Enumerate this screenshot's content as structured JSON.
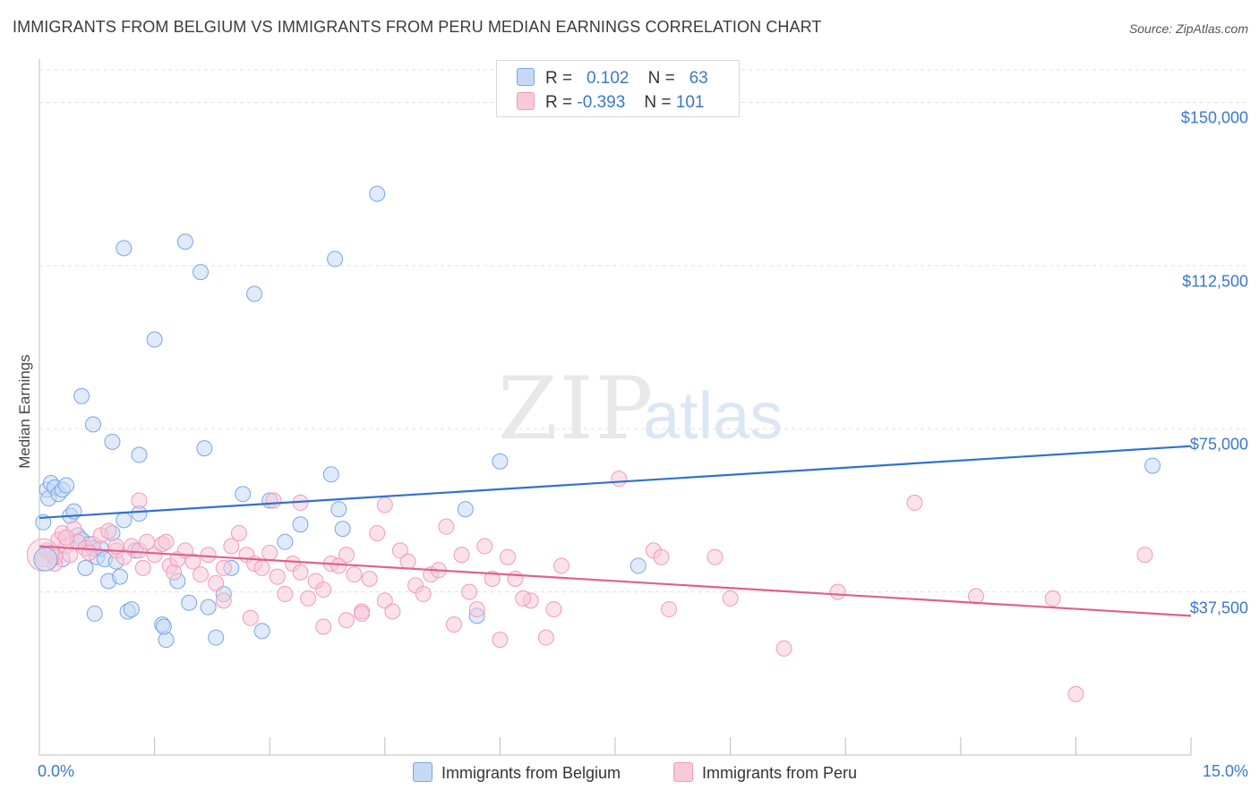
{
  "chart_data": {
    "type": "scatter",
    "title": "IMMIGRANTS FROM BELGIUM VS IMMIGRANTS FROM PERU MEDIAN EARNINGS CORRELATION CHART",
    "source": "Source: ZipAtlas.com",
    "ylabel": "Median Earnings",
    "xlim": [
      0,
      15
    ],
    "ylim": [
      0,
      157500
    ],
    "y_ticks": [
      {
        "value": 37500,
        "label": "$37,500"
      },
      {
        "value": 75000,
        "label": "$75,000"
      },
      {
        "value": 112500,
        "label": "$112,500"
      },
      {
        "value": 150000,
        "label": "$150,000"
      }
    ],
    "x_ticks": [
      {
        "value": 0,
        "label": "0.0%"
      },
      {
        "value": 15,
        "label": "15.0%"
      }
    ],
    "grid": true,
    "legend_placement": "top-center",
    "stats": [
      {
        "r_label": "R =",
        "r": "0.102",
        "n_label": "N =",
        "n": "63"
      },
      {
        "r_label": "R =",
        "r": "-0.393",
        "n_label": "N =",
        "n": "101"
      }
    ],
    "series": [
      {
        "name": "Immigrants from Belgium",
        "color": "#7aa6e6",
        "fill": "#c5d9f5",
        "line_color": "#2f72d0",
        "trend": [
          [
            0,
            54500
          ],
          [
            15,
            71000
          ]
        ],
        "points": [
          [
            0.05,
            53500
          ],
          [
            0.1,
            61000
          ],
          [
            0.12,
            59000
          ],
          [
            0.15,
            62500
          ],
          [
            0.2,
            61500
          ],
          [
            0.25,
            60000
          ],
          [
            0.3,
            61000
          ],
          [
            0.35,
            62000
          ],
          [
            0.4,
            55000
          ],
          [
            0.45,
            56000
          ],
          [
            0.5,
            50500
          ],
          [
            0.55,
            49500
          ],
          [
            0.6,
            43000
          ],
          [
            0.65,
            48500
          ],
          [
            0.7,
            47500
          ],
          [
            0.75,
            45500
          ],
          [
            0.8,
            47500
          ],
          [
            0.85,
            45000
          ],
          [
            0.9,
            40000
          ],
          [
            0.95,
            51000
          ],
          [
            1.0,
            44500
          ],
          [
            1.05,
            41000
          ],
          [
            1.1,
            54000
          ],
          [
            1.15,
            33000
          ],
          [
            1.2,
            33500
          ],
          [
            1.25,
            47000
          ],
          [
            1.3,
            55500
          ],
          [
            0.55,
            82500
          ],
          [
            0.7,
            76000
          ],
          [
            0.95,
            72000
          ],
          [
            1.1,
            116500
          ],
          [
            1.3,
            69000
          ],
          [
            1.5,
            95500
          ],
          [
            1.9,
            118000
          ],
          [
            2.1,
            111000
          ],
          [
            2.15,
            70500
          ],
          [
            1.6,
            30000
          ],
          [
            1.65,
            26500
          ],
          [
            1.8,
            40000
          ],
          [
            1.95,
            35000
          ],
          [
            2.2,
            34000
          ],
          [
            2.3,
            27000
          ],
          [
            2.4,
            37000
          ],
          [
            2.5,
            43000
          ],
          [
            2.65,
            60000
          ],
          [
            2.8,
            106000
          ],
          [
            2.9,
            28500
          ],
          [
            3.0,
            58500
          ],
          [
            3.2,
            49000
          ],
          [
            3.4,
            53000
          ],
          [
            3.8,
            64500
          ],
          [
            3.9,
            56500
          ],
          [
            3.95,
            52000
          ],
          [
            3.85,
            114000
          ],
          [
            4.4,
            129000
          ],
          [
            5.55,
            56500
          ],
          [
            5.7,
            32000
          ],
          [
            6.0,
            67500
          ],
          [
            7.8,
            43500
          ],
          [
            14.5,
            66500
          ],
          [
            0.72,
            32500
          ],
          [
            1.62,
            29500
          ],
          [
            0.3,
            45000
          ]
        ]
      },
      {
        "name": "Immigrants from Peru",
        "color": "#ee9cb8",
        "fill": "#f8c9d8",
        "line_color": "#e0608c",
        "trend": [
          [
            0,
            48000
          ],
          [
            15,
            32000
          ]
        ],
        "points": [
          [
            0.05,
            45000
          ],
          [
            0.1,
            47000
          ],
          [
            0.15,
            46500
          ],
          [
            0.2,
            44000
          ],
          [
            0.25,
            49500
          ],
          [
            0.3,
            51000
          ],
          [
            0.35,
            48000
          ],
          [
            0.4,
            46000
          ],
          [
            0.45,
            52000
          ],
          [
            0.5,
            49000
          ],
          [
            0.6,
            47500
          ],
          [
            0.7,
            48500
          ],
          [
            0.8,
            50500
          ],
          [
            0.9,
            51500
          ],
          [
            1.0,
            47000
          ],
          [
            1.1,
            45500
          ],
          [
            1.2,
            48000
          ],
          [
            1.3,
            47000
          ],
          [
            1.35,
            43000
          ],
          [
            1.4,
            49000
          ],
          [
            1.5,
            46000
          ],
          [
            1.6,
            48500
          ],
          [
            1.65,
            49000
          ],
          [
            1.7,
            43500
          ],
          [
            1.75,
            42000
          ],
          [
            1.8,
            45000
          ],
          [
            1.9,
            47000
          ],
          [
            2.0,
            44500
          ],
          [
            2.1,
            41500
          ],
          [
            2.2,
            46000
          ],
          [
            2.3,
            39500
          ],
          [
            2.4,
            43000
          ],
          [
            2.5,
            48000
          ],
          [
            2.6,
            51000
          ],
          [
            2.7,
            46000
          ],
          [
            2.8,
            44000
          ],
          [
            2.9,
            43000
          ],
          [
            3.0,
            46500
          ],
          [
            3.1,
            41000
          ],
          [
            3.2,
            37000
          ],
          [
            3.3,
            44000
          ],
          [
            3.4,
            42000
          ],
          [
            3.5,
            36000
          ],
          [
            3.6,
            40000
          ],
          [
            3.7,
            38000
          ],
          [
            3.8,
            44000
          ],
          [
            3.9,
            43500
          ],
          [
            4.0,
            46000
          ],
          [
            4.1,
            41500
          ],
          [
            4.2,
            33000
          ],
          [
            4.3,
            40500
          ],
          [
            4.4,
            51000
          ],
          [
            4.5,
            35500
          ],
          [
            4.6,
            33000
          ],
          [
            4.7,
            47000
          ],
          [
            4.8,
            44500
          ],
          [
            4.9,
            39000
          ],
          [
            5.0,
            37000
          ],
          [
            5.1,
            41500
          ],
          [
            5.2,
            42500
          ],
          [
            5.3,
            52500
          ],
          [
            5.4,
            30000
          ],
          [
            5.5,
            46000
          ],
          [
            5.6,
            37500
          ],
          [
            5.7,
            33500
          ],
          [
            5.8,
            48000
          ],
          [
            5.9,
            40500
          ],
          [
            6.0,
            26500
          ],
          [
            6.1,
            45500
          ],
          [
            6.2,
            40500
          ],
          [
            6.4,
            35500
          ],
          [
            6.6,
            27000
          ],
          [
            6.7,
            33500
          ],
          [
            6.8,
            43500
          ],
          [
            1.3,
            58500
          ],
          [
            3.05,
            58500
          ],
          [
            3.4,
            58000
          ],
          [
            4.5,
            57500
          ],
          [
            7.55,
            63500
          ],
          [
            8.0,
            47000
          ],
          [
            8.1,
            45500
          ],
          [
            8.2,
            33500
          ],
          [
            8.8,
            45500
          ],
          [
            9.0,
            36000
          ],
          [
            9.7,
            24500
          ],
          [
            10.4,
            37500
          ],
          [
            11.4,
            58000
          ],
          [
            12.2,
            36500
          ],
          [
            13.2,
            36000
          ],
          [
            13.5,
            14000
          ],
          [
            14.4,
            46000
          ],
          [
            0.2,
            45500
          ],
          [
            0.65,
            46500
          ],
          [
            1.0,
            48000
          ],
          [
            2.4,
            35500
          ],
          [
            2.75,
            31500
          ],
          [
            3.7,
            29500
          ],
          [
            4.2,
            32500
          ],
          [
            6.3,
            36000
          ],
          [
            0.35,
            50000
          ],
          [
            4.0,
            31000
          ]
        ]
      }
    ]
  }
}
